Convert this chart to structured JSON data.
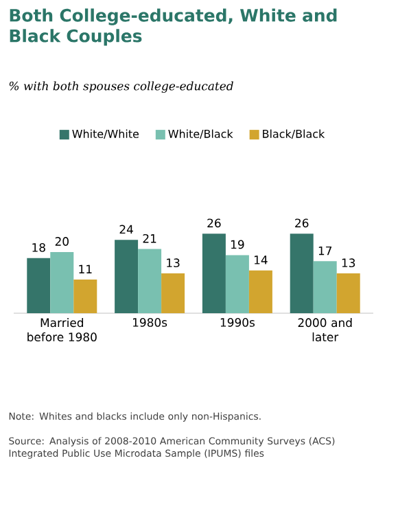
{
  "chart_data": {
    "type": "bar",
    "title": "Both College-educated, White and Black Couples",
    "subtitle": "% with both spouses college-educated",
    "categories": [
      "Married before 1980",
      "1980s",
      "1990s",
      "2000 and later"
    ],
    "series": [
      {
        "name": "White/White",
        "color": "#35756a",
        "values": [
          18,
          24,
          26,
          26
        ]
      },
      {
        "name": "White/Black",
        "color": "#79c0b0",
        "values": [
          20,
          21,
          19,
          17
        ]
      },
      {
        "name": "Black/Black",
        "color": "#d2a52f",
        "values": [
          11,
          13,
          14,
          13
        ]
      }
    ],
    "data_labels": true,
    "legend": "top",
    "annotations": [
      "Note: Whites and blacks include only non-Hispanics.",
      "Source: Analysis of 2008-2010 American Community Surveys (ACS) Integrated Public Use Microdata Sample (IPUMS) files"
    ]
  }
}
